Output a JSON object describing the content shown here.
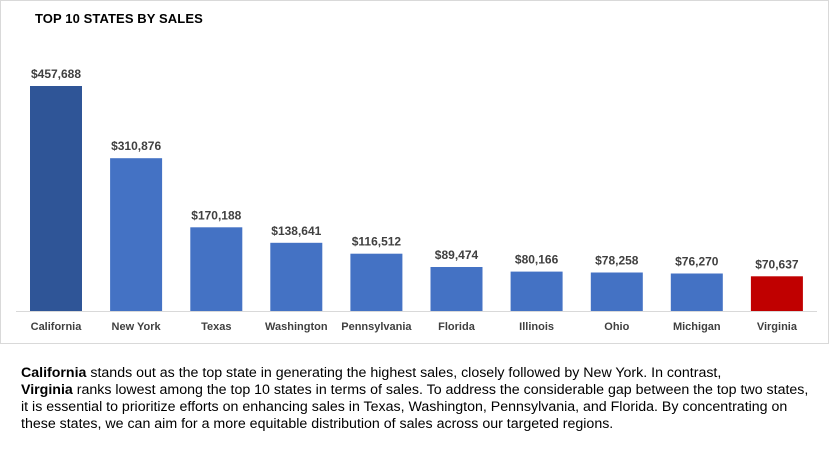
{
  "chart_data": {
    "type": "bar",
    "title": "TOP 10 STATES BY SALES",
    "categories": [
      "California",
      "New York",
      "Texas",
      "Washington",
      "Pennsylvania",
      "Florida",
      "Illinois",
      "Ohio",
      "Michigan",
      "Virginia"
    ],
    "values": [
      457688,
      310876,
      170188,
      138641,
      116512,
      89474,
      80166,
      78258,
      76270,
      70637
    ],
    "data_labels": [
      "$457,688",
      "$310,876",
      "$170,188",
      "$138,641",
      "$116,512",
      "$89,474",
      "$80,166",
      "$78,258",
      "$76,270",
      "$70,637"
    ],
    "bar_colors": [
      "#2f5597",
      "#4472c4",
      "#4472c4",
      "#4472c4",
      "#4472c4",
      "#4472c4",
      "#4472c4",
      "#4472c4",
      "#4472c4",
      "#c00000"
    ],
    "xlabel": "",
    "ylabel": "",
    "ylim": [
      0,
      457688
    ],
    "grid": false,
    "legend": "none"
  },
  "caption": {
    "line1_bold": "California",
    "line1_text": " stands out as the top state in generating the highest sales, closely followed by New York. In contrast,",
    "line2_bold": "Virginia",
    "line2_text": " ranks lowest among the top 10 states in terms of sales. To address the considerable gap between the top two states, it is essential to prioritize efforts on enhancing sales in Texas, Washington, Pennsylvania, and Florida. By concentrating on these states, we can aim for a more equitable distribution of sales across our targeted regions."
  }
}
